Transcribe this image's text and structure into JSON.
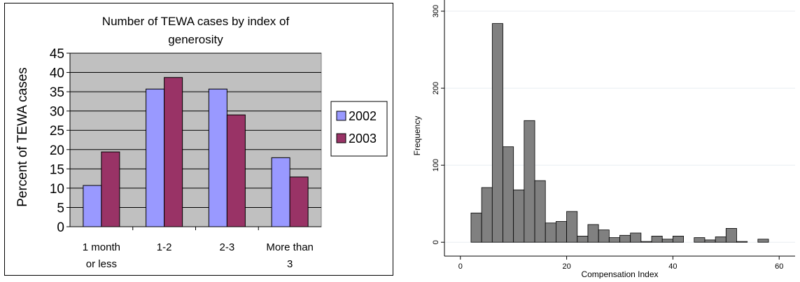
{
  "chart_data": [
    {
      "type": "bar",
      "title": "Number of TEWA cases by index of generosity",
      "title_lines": [
        "Number of TEWA cases by index of",
        "generosity"
      ],
      "xlabel": "",
      "ylabel": "Percent of TEWA cases",
      "categories": [
        [
          "1 month",
          "or less"
        ],
        [
          "1-2"
        ],
        [
          "2-3"
        ],
        [
          "More than",
          "3"
        ]
      ],
      "series": [
        {
          "name": "2002",
          "values": [
            10.7,
            35.7,
            35.7,
            17.9
          ],
          "color": "#9999ff"
        },
        {
          "name": "2003",
          "values": [
            19.4,
            38.7,
            29.0,
            12.9
          ],
          "color": "#993366"
        }
      ],
      "ylim": [
        0,
        45
      ],
      "yticks": [
        "0",
        "5",
        "10",
        "15",
        "20",
        "25",
        "30",
        "35",
        "40",
        "45"
      ],
      "grid": true,
      "legend": "right",
      "plot_background": "#c0c0c0"
    },
    {
      "type": "bar",
      "subtype": "histogram",
      "title": "",
      "xlabel": "Compensation Index",
      "ylabel": "Frequency",
      "bin_width": 2,
      "x": [
        3,
        5,
        7,
        9,
        11,
        13,
        15,
        17,
        19,
        21,
        23,
        25,
        27,
        29,
        31,
        33,
        35,
        37,
        39,
        41,
        43,
        45,
        47,
        49,
        51,
        53,
        55,
        57
      ],
      "values": [
        38,
        71,
        284,
        124,
        68,
        158,
        80,
        25,
        27,
        40,
        8,
        23,
        16,
        6,
        9,
        12,
        1,
        8,
        4,
        8,
        0,
        6,
        3,
        7,
        18,
        1,
        0,
        4
      ],
      "xlim": [
        -3,
        63
      ],
      "ylim": [
        -18,
        320
      ],
      "xticks": [
        0,
        20,
        40,
        60
      ],
      "yticks": [
        0,
        100,
        200,
        300
      ],
      "xtick_labels": [
        "0",
        "20",
        "40",
        "60"
      ],
      "ytick_labels": [
        "0",
        "100",
        "200",
        "300"
      ],
      "grid": true,
      "bar_color": "#808080"
    }
  ]
}
